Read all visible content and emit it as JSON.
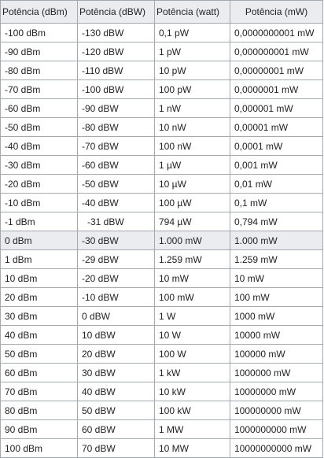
{
  "table": {
    "headers": [
      "Potência (dBm)",
      "Potência (dBW)",
      "Potência (watt)",
      "Potência (mW)"
    ],
    "rows": [
      [
        "-100 dBm",
        "-130 dBW",
        "0,1 pW",
        "0,0000000001 mW"
      ],
      [
        "-90 dBm",
        "-120 dBW",
        "1 pW",
        "0,000000001 mW"
      ],
      [
        "-80 dBm",
        "-110 dBW",
        "10 pW",
        "0,00000001 mW"
      ],
      [
        "-70 dBm",
        "-100 dBW",
        "100 pW",
        "0,0000001 mW"
      ],
      [
        "-60 dBm",
        "-90 dBW",
        "1 nW",
        "0,000001 mW"
      ],
      [
        "-50 dBm",
        "-80 dBW",
        "10 nW",
        "0,00001 mW"
      ],
      [
        "-40 dBm",
        "-70 dBW",
        "100 nW",
        "0,0001 mW"
      ],
      [
        "-30 dBm",
        "-60 dBW",
        "1 µW",
        "0,001 mW"
      ],
      [
        "-20 dBm",
        "-50 dBW",
        "10 µW",
        "0,01 mW"
      ],
      [
        "-10 dBm",
        "-40 dBW",
        "100 µW",
        "0,1 mW"
      ],
      [
        "-1 dBm",
        "-31 dBW",
        "794 µW",
        "0,794 mW"
      ],
      [
        "0 dBm",
        "-30 dBW",
        "1.000 mW",
        "1.000 mW"
      ],
      [
        "1 dBm",
        "-29 dBW",
        "1.259 mW",
        "1.259 mW"
      ],
      [
        "10 dBm",
        "-20 dBW",
        "10 mW",
        "10 mW"
      ],
      [
        "20 dBm",
        "-10 dBW",
        "100 mW",
        "100 mW"
      ],
      [
        "30 dBm",
        "0 dBW",
        "1 W",
        "1000 mW"
      ],
      [
        "40 dBm",
        "10 dBW",
        "10 W",
        "10000 mW"
      ],
      [
        "50 dBm",
        "20 dBW",
        "100 W",
        "100000 mW"
      ],
      [
        "60 dBm",
        "30 dBW",
        "1 kW",
        "1000000 mW"
      ],
      [
        "70 dBm",
        "40 dBW",
        "10 kW",
        "10000000 mW"
      ],
      [
        "80 dBm",
        "50 dBW",
        "100 kW",
        "100000000 mW"
      ],
      [
        "90 dBm",
        "60 dBW",
        "1 MW",
        "1000000000 mW"
      ],
      [
        "100 dBm",
        "70 dBW",
        "10 MW",
        "10000000000 mW"
      ]
    ]
  }
}
